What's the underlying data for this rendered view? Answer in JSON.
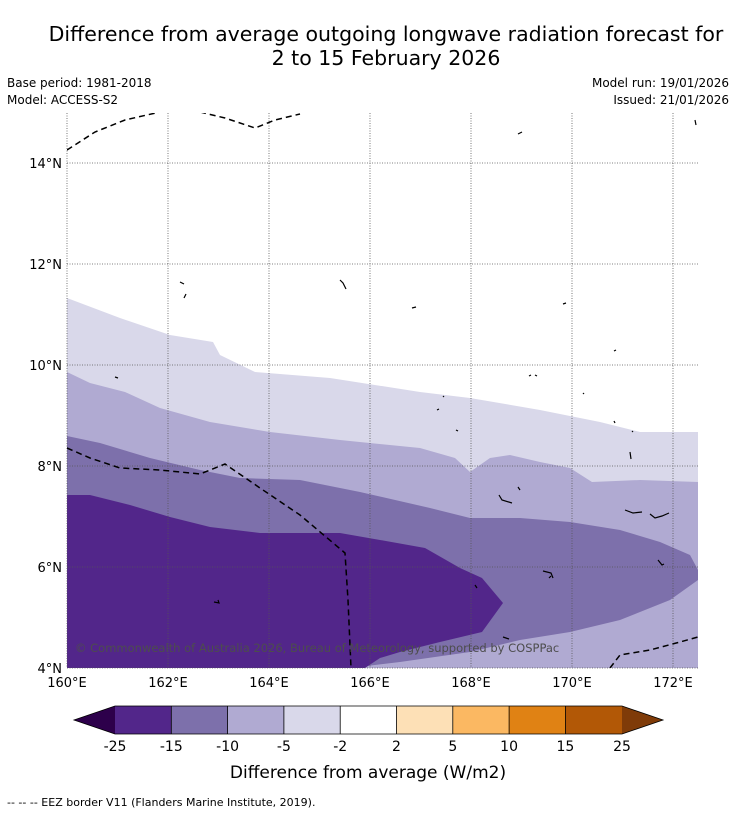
{
  "title": {
    "line1": "Difference from average outgoing longwave radiation forecast for",
    "line2": "2 to 15 February 2026"
  },
  "meta": {
    "base_period": "Base period: 1981-2018",
    "model": "Model: ACCESS-S2",
    "model_run": "Model run: 19/01/2026",
    "issued": "Issued: 21/01/2026"
  },
  "map": {
    "lat_labels": [
      "14°N",
      "12°N",
      "10°N",
      "8°N",
      "6°N",
      "4°N"
    ],
    "lon_labels": [
      "160°E",
      "162°E",
      "164°E",
      "166°E",
      "168°E",
      "170°E",
      "172°E"
    ],
    "copyright": "© Commonwealth of Australia 2026, Bureau of Meteorology, supported by COSPPac"
  },
  "colorbar": {
    "ticks": [
      "-25",
      "-15",
      "-10",
      "-5",
      "-2",
      "2",
      "5",
      "10",
      "15",
      "25"
    ],
    "colors": [
      "#52268a",
      "#7d70ab",
      "#b0aad2",
      "#d9d8ea",
      "#ffffff",
      "#fde0b6",
      "#fbb862",
      "#e08214",
      "#b25806"
    ],
    "low_extend_color": "#2d004b",
    "high_extend_color": "#7f3b08",
    "label": "Difference from average (W/m2)"
  },
  "footer": {
    "legend": "--  --  -- EEZ border V11 (Flanders Marine Institute, 2019)."
  }
}
